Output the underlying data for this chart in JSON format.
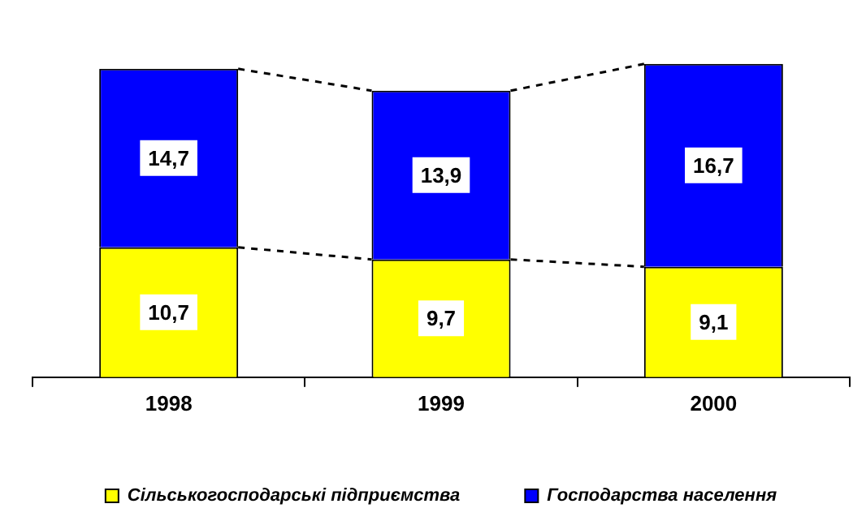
{
  "chart_data": {
    "type": "bar",
    "stacked": true,
    "categories": [
      "1998",
      "1999",
      "2000"
    ],
    "series": [
      {
        "name": "Сільськогосподарські підприємства",
        "color": "#ffff00",
        "values": [
          10.7,
          9.7,
          9.1
        ],
        "value_labels": [
          "10,7",
          "9,7",
          "9,1"
        ]
      },
      {
        "name": "Господарства населення",
        "color": "#0000ff",
        "values": [
          14.7,
          13.9,
          16.7
        ],
        "value_labels": [
          "14,7",
          "13,9",
          "16,7"
        ]
      }
    ],
    "legend": "bottom",
    "grid": false,
    "tick_labels": "x"
  }
}
